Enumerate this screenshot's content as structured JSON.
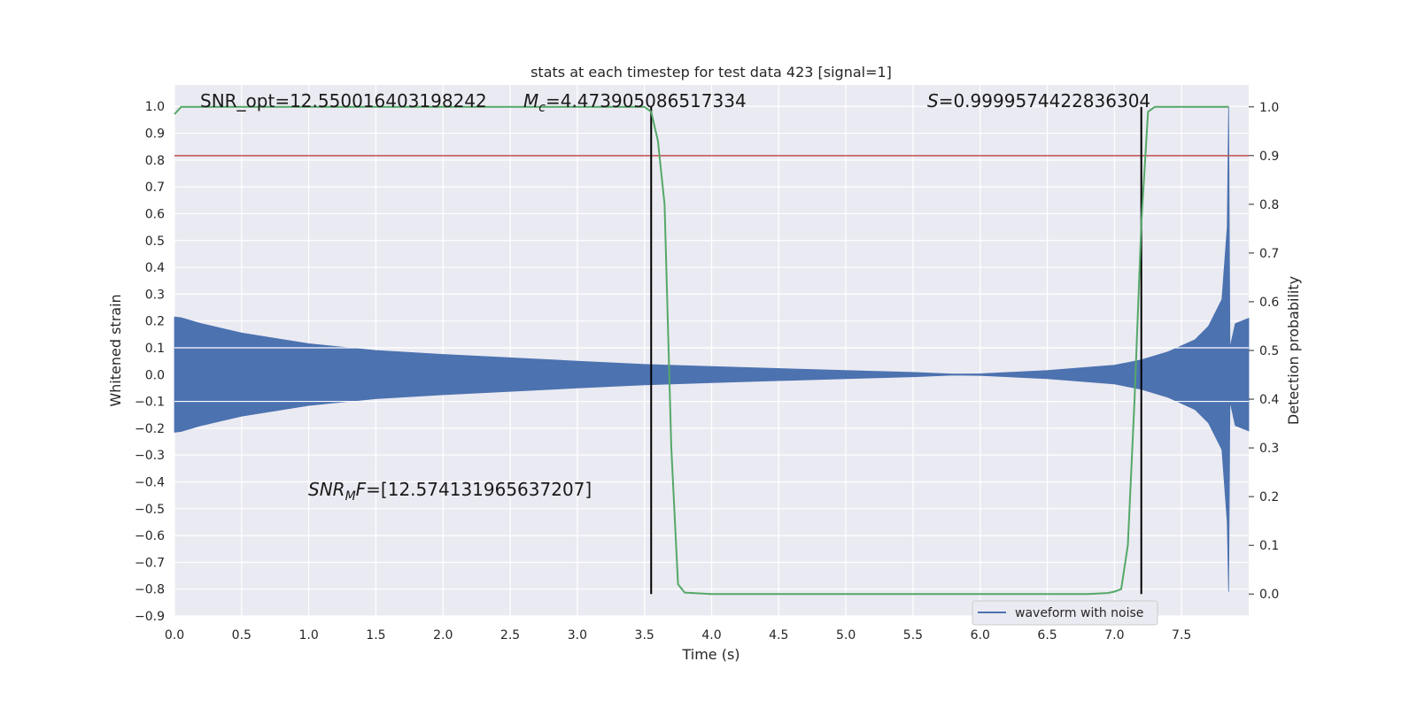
{
  "chart_data": {
    "type": "line",
    "title": "stats at each timestep for test data 423 [signal=1]",
    "xlabel": "Time (s)",
    "ylabel": "Whitened strain",
    "y2label": "Detection probability",
    "xlim": [
      0.0,
      8.0
    ],
    "ylim": [
      -0.9,
      1.08
    ],
    "y2lim": [
      -0.045,
      1.045
    ],
    "x_ticks": [
      "0.0",
      "0.5",
      "1.0",
      "1.5",
      "2.0",
      "2.5",
      "3.0",
      "3.5",
      "4.0",
      "4.5",
      "5.0",
      "5.5",
      "6.0",
      "6.5",
      "7.0",
      "7.5"
    ],
    "y_ticks": [
      "1.0",
      "0.9",
      "0.8",
      "0.7",
      "0.6",
      "0.5",
      "0.4",
      "0.3",
      "0.2",
      "0.1",
      "0.0",
      "−0.1",
      "−0.2",
      "−0.3",
      "−0.4",
      "−0.5",
      "−0.6",
      "−0.7",
      "−0.8",
      "−0.9"
    ],
    "y2_ticks": [
      "1.0",
      "0.9",
      "0.8",
      "0.7",
      "0.6",
      "0.5",
      "0.4",
      "0.3",
      "0.2",
      "0.1",
      "0.0"
    ],
    "grid": true,
    "legend_position": "lower-right",
    "annotations": {
      "snr_opt": "SNR_opt=12.550016403198242",
      "mc": "=4.473905086517334",
      "mc_symbol": "M",
      "mc_sub": "c",
      "s_symbol": "S",
      "s": "=0.9999574422836304",
      "snr_mf_symbol": "SNR",
      "snr_mf_sub": "M",
      "snr_mf_tail": "F",
      "snr_mf": "=[12.574131965637207]"
    },
    "series": [
      {
        "name": "waveform with noise",
        "color": "#4c72b0",
        "kind": "envelope",
        "x": [
          0.0,
          0.05,
          0.2,
          0.5,
          1.0,
          1.5,
          2.0,
          3.0,
          3.5,
          4.0,
          5.0,
          5.5,
          5.8,
          6.0,
          6.5,
          7.0,
          7.2,
          7.4,
          7.6,
          7.7,
          7.8,
          7.84,
          7.85,
          7.86,
          7.9,
          8.0
        ],
        "upper": [
          0.215,
          0.212,
          0.19,
          0.155,
          0.115,
          0.09,
          0.075,
          0.05,
          0.038,
          0.03,
          0.015,
          0.008,
          0.002,
          0.003,
          0.015,
          0.035,
          0.055,
          0.085,
          0.13,
          0.18,
          0.28,
          0.55,
          1.0,
          0.1,
          0.19,
          0.21
        ],
        "lower": [
          -0.215,
          -0.212,
          -0.19,
          -0.155,
          -0.115,
          -0.09,
          -0.075,
          -0.05,
          -0.038,
          -0.03,
          -0.015,
          -0.008,
          -0.002,
          -0.003,
          -0.015,
          -0.035,
          -0.055,
          -0.085,
          -0.13,
          -0.18,
          -0.28,
          -0.55,
          -0.81,
          -0.1,
          -0.19,
          -0.21
        ]
      },
      {
        "name": "detection probability",
        "color": "#55a868",
        "axis": "right",
        "x": [
          0.0,
          0.05,
          3.5,
          3.55,
          3.6,
          3.65,
          3.7,
          3.75,
          3.8,
          4.0,
          6.8,
          6.95,
          7.0,
          7.05,
          7.1,
          7.15,
          7.2,
          7.25,
          7.3,
          7.35,
          7.85
        ],
        "values": [
          0.985,
          1.0,
          1.0,
          0.99,
          0.93,
          0.8,
          0.3,
          0.02,
          0.003,
          0.0,
          0.0,
          0.002,
          0.005,
          0.01,
          0.1,
          0.4,
          0.76,
          0.99,
          1.0,
          1.0,
          1.0
        ]
      }
    ],
    "threshold": {
      "color": "#c44e52",
      "y2": 0.9
    },
    "vlines": {
      "color": "#000000",
      "x": [
        3.55,
        7.2
      ]
    }
  }
}
